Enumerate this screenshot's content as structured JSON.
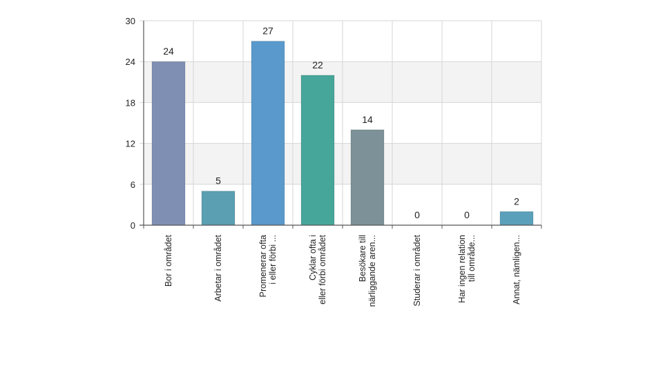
{
  "chart_data": {
    "type": "bar",
    "categories": [
      [
        "Bor i området"
      ],
      [
        "Arbetar i området"
      ],
      [
        "Promenerar ofta",
        "i eller förbi ..."
      ],
      [
        "Cyklar ofta i",
        "eller förbi området"
      ],
      [
        "Besökare till",
        "närliggande aren..."
      ],
      [
        "Studerar i området"
      ],
      [
        "Har ingen relation",
        "till område..."
      ],
      [
        "Annat, nämligen..."
      ]
    ],
    "values": [
      24,
      5,
      27,
      22,
      14,
      0,
      0,
      2
    ],
    "ylim": [
      0,
      30
    ],
    "yticks": [
      0,
      6,
      12,
      18,
      24,
      30
    ],
    "grid": true,
    "colors": [
      "#7f8fb4",
      "#5b9fb2",
      "#5999cb",
      "#46a69a",
      "#7d9198",
      "#8a9cc0",
      "#8a9cc0",
      "#5aa0ba"
    ],
    "title": "",
    "xlabel": "",
    "ylabel": ""
  }
}
